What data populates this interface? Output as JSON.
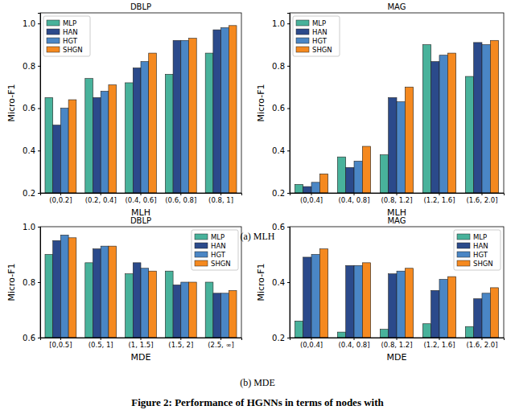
{
  "chart_data": [
    {
      "type": "bar",
      "title": "DBLP",
      "x_label": "MLH",
      "y_label": "Micro-F1",
      "categories": [
        "(0,0.2]",
        "(0.2, 0.4]",
        "(0.4, 0.6]",
        "(0.6, 0.8]",
        "(0.8, 1]"
      ],
      "series": [
        {
          "name": "MLP",
          "color": "#48b29b",
          "values": [
            0.65,
            0.74,
            0.72,
            0.76,
            0.86
          ]
        },
        {
          "name": "HAN",
          "color": "#2b4a8b",
          "values": [
            0.52,
            0.65,
            0.79,
            0.92,
            0.97
          ]
        },
        {
          "name": "HGT",
          "color": "#4a86c5",
          "values": [
            0.6,
            0.68,
            0.82,
            0.92,
            0.98
          ]
        },
        {
          "name": "SHGN",
          "color": "#f5891f",
          "values": [
            0.64,
            0.71,
            0.86,
            0.93,
            0.99
          ]
        }
      ],
      "ylim": [
        0.2,
        1.05
      ],
      "yticks": [
        0.2,
        0.4,
        0.6,
        0.8,
        {
          "value": 1,
          "label": "1.0"
        }
      ],
      "legend": "upper left",
      "grid": false
    },
    {
      "type": "bar",
      "title": "MAG",
      "x_label": "MLH",
      "y_label": "Micro-F1",
      "categories": [
        "(0,0.4]",
        "(0.4, 0.8]",
        "(0.8, 1.2]",
        "(1.2, 1.6]",
        "(1.6, 2.0]"
      ],
      "series": [
        {
          "name": "MLP",
          "color": "#48b29b",
          "values": [
            0.24,
            0.37,
            0.38,
            0.9,
            0.75
          ]
        },
        {
          "name": "HAN",
          "color": "#2b4a8b",
          "values": [
            0.23,
            0.32,
            0.65,
            0.82,
            0.91
          ]
        },
        {
          "name": "HGT",
          "color": "#4a86c5",
          "values": [
            0.25,
            0.35,
            0.63,
            0.85,
            0.9
          ]
        },
        {
          "name": "SHGN",
          "color": "#f5891f",
          "values": [
            0.29,
            0.42,
            0.7,
            0.86,
            0.92
          ]
        }
      ],
      "ylim": [
        0.2,
        1.05
      ],
      "yticks": [
        0.2,
        0.4,
        0.6,
        0.8,
        {
          "value": 1,
          "label": "1.0"
        }
      ],
      "legend": "upper left",
      "grid": false
    },
    {
      "type": "bar",
      "title": "DBLP",
      "x_label": "MDE",
      "y_label": "Micro-F1",
      "categories": [
        "[0,0.5]",
        "(0.5, 1]",
        "(1, 1.5]",
        "(1.5, 2]",
        "(2.5, ∞]"
      ],
      "series": [
        {
          "name": "MLP",
          "color": "#48b29b",
          "values": [
            0.9,
            0.87,
            0.83,
            0.84,
            0.8
          ]
        },
        {
          "name": "HAN",
          "color": "#2b4a8b",
          "values": [
            0.95,
            0.92,
            0.87,
            0.79,
            0.76
          ]
        },
        {
          "name": "HGT",
          "color": "#4a86c5",
          "values": [
            0.97,
            0.93,
            0.85,
            0.8,
            0.76
          ]
        },
        {
          "name": "SHGN",
          "color": "#f5891f",
          "values": [
            0.96,
            0.93,
            0.84,
            0.8,
            0.77
          ]
        }
      ],
      "ylim": [
        0.6,
        1
      ],
      "yticks": [
        0.6,
        0.8,
        {
          "value": 1,
          "label": "1.0"
        }
      ],
      "legend": "upper right",
      "grid": false
    },
    {
      "type": "bar",
      "title": "MAG",
      "x_label": "MDE",
      "y_label": "Micro-F1",
      "categories": [
        "(0,0.4]",
        "(0.4, 0.8]",
        "(0.8, 1.2]",
        "(1.2, 1.6]",
        "(1.6, 2.0]"
      ],
      "series": [
        {
          "name": "MLP",
          "color": "#48b29b",
          "values": [
            0.26,
            0.22,
            0.23,
            0.25,
            0.24
          ]
        },
        {
          "name": "HAN",
          "color": "#2b4a8b",
          "values": [
            0.49,
            0.46,
            0.43,
            0.37,
            0.34
          ]
        },
        {
          "name": "HGT",
          "color": "#4a86c5",
          "values": [
            0.5,
            0.46,
            0.44,
            0.41,
            0.36
          ]
        },
        {
          "name": "SHGN",
          "color": "#f5891f",
          "values": [
            0.52,
            0.47,
            0.45,
            0.42,
            0.38
          ]
        }
      ],
      "ylim": [
        0.2,
        0.6
      ],
      "yticks": [
        0.2,
        0.4,
        0.6
      ],
      "legend": "upper right",
      "grid": false
    }
  ],
  "subcaptions": [
    "(a) MLH",
    "(b) MDE"
  ],
  "caption": "Figure 2: Performance of HGNNs in terms of nodes with"
}
